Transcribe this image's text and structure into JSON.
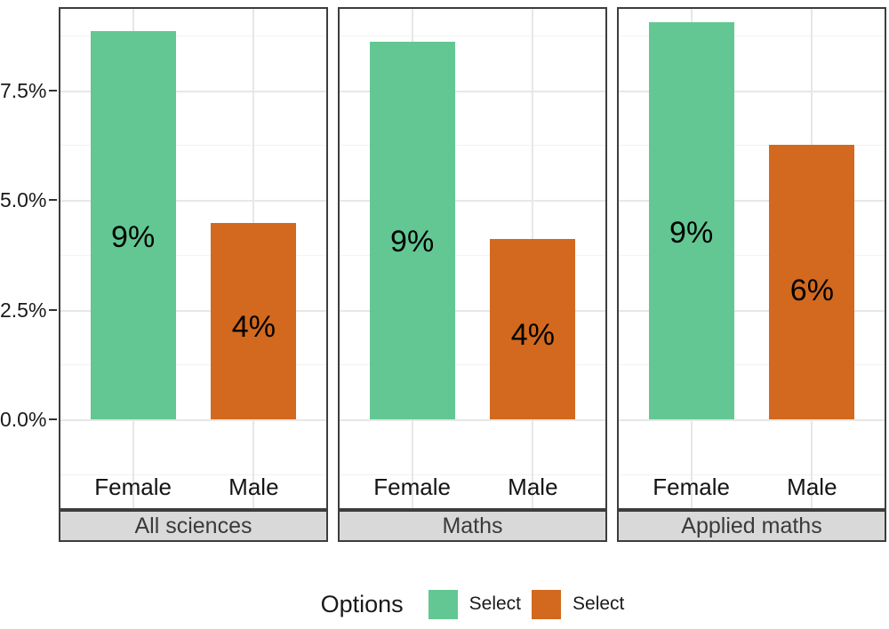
{
  "chart_data": {
    "type": "bar",
    "title": "",
    "categories": [
      "Female",
      "Male"
    ],
    "facets": [
      {
        "label": "All sciences",
        "values": [
          8.85,
          4.47
        ],
        "bar_labels": [
          "9%",
          "4%"
        ]
      },
      {
        "label": "Maths",
        "values": [
          8.6,
          4.1
        ],
        "bar_labels": [
          "9%",
          "4%"
        ]
      },
      {
        "label": "Applied maths",
        "values": [
          9.05,
          6.25
        ],
        "bar_labels": [
          "9%",
          "6%"
        ]
      }
    ],
    "bar_colors": [
      "#63c793",
      "#d2691e"
    ],
    "y_axis": {
      "ticks": [
        {
          "label": "0.0%",
          "value": 0
        },
        {
          "label": "2.5%",
          "value": 2.5
        },
        {
          "label": "5.0%",
          "value": 5
        },
        {
          "label": "7.5%",
          "value": 7.5
        }
      ],
      "minor_gridlines": [
        -1.25,
        1.25,
        3.75,
        6.25,
        8.75
      ],
      "range": [
        -2.3,
        9.45
      ],
      "grid": true
    },
    "legend": {
      "title": "Options",
      "position": "bottom",
      "entries": [
        {
          "label": "Select",
          "color": "#63c793"
        },
        {
          "label": "Select",
          "color": "#d2691e"
        }
      ]
    },
    "facet_strip": {
      "background": "#d9d9d9",
      "border": "#3d3d3d",
      "position": "bottom"
    }
  }
}
